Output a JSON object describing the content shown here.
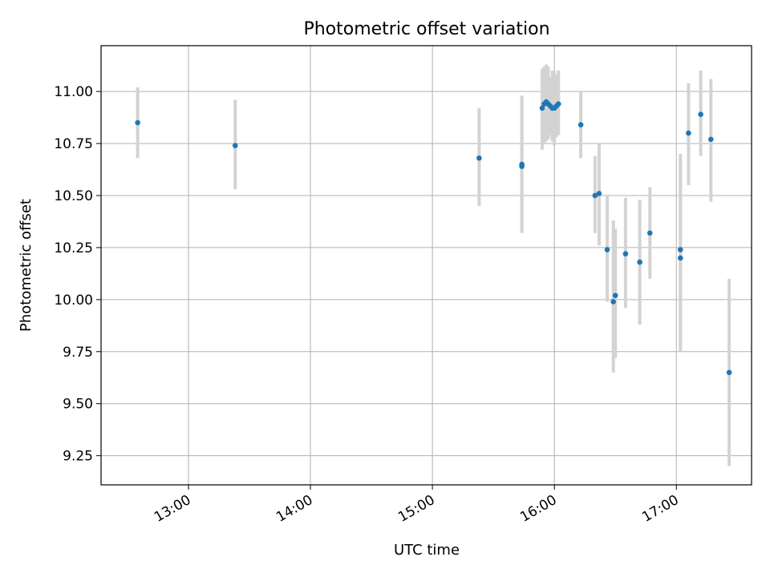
{
  "chart_data": {
    "type": "scatter",
    "title": "Photometric offset variation",
    "xlabel": "UTC time",
    "ylabel": "Photometric offset",
    "grid": true,
    "xlim": [
      "12:17",
      "17:37"
    ],
    "ylim": [
      9.11,
      11.22
    ],
    "x_ticks": [
      "13:00",
      "14:00",
      "15:00",
      "16:00",
      "17:00"
    ],
    "y_ticks": [
      "9.25",
      "9.50",
      "9.75",
      "10.00",
      "10.25",
      "10.50",
      "10.75",
      "11.00"
    ],
    "marker_color": "#1f77b4",
    "errorbar_color": "#d3d3d3",
    "series": [
      {
        "x": [
          "12:35",
          "13:23",
          "15:23",
          "15:44",
          "15:44",
          "15:54",
          "15:55",
          "15:56",
          "15:57",
          "15:58",
          "15:59",
          "16:00",
          "16:01",
          "16:02",
          "16:13",
          "16:20",
          "16:22",
          "16:26",
          "16:29",
          "16:30",
          "16:35",
          "16:42",
          "16:47",
          "17:02",
          "17:02",
          "17:06",
          "17:12",
          "17:17",
          "17:26"
        ],
        "y": [
          10.85,
          10.74,
          10.68,
          10.65,
          10.64,
          10.92,
          10.94,
          10.95,
          10.94,
          10.93,
          10.92,
          10.92,
          10.93,
          10.94,
          10.84,
          10.5,
          10.51,
          10.24,
          9.99,
          10.02,
          10.22,
          10.18,
          10.32,
          10.24,
          10.2,
          10.8,
          10.89,
          10.77,
          9.65
        ],
        "yerr_low": [
          10.68,
          10.53,
          10.45,
          10.33,
          10.32,
          10.72,
          10.75,
          10.76,
          10.77,
          10.79,
          10.76,
          10.74,
          10.78,
          10.79,
          10.68,
          10.32,
          10.26,
          9.99,
          9.65,
          9.72,
          9.96,
          9.88,
          10.1,
          9.75,
          9.76,
          10.55,
          10.69,
          10.47,
          9.2
        ],
        "yerr_high": [
          11.02,
          10.96,
          10.92,
          10.98,
          10.96,
          11.11,
          11.12,
          11.13,
          11.12,
          11.07,
          11.1,
          11.1,
          11.08,
          11.1,
          11.0,
          10.69,
          10.75,
          10.5,
          10.38,
          10.34,
          10.49,
          10.48,
          10.54,
          10.7,
          10.66,
          11.04,
          11.1,
          11.06,
          10.1
        ]
      }
    ]
  }
}
